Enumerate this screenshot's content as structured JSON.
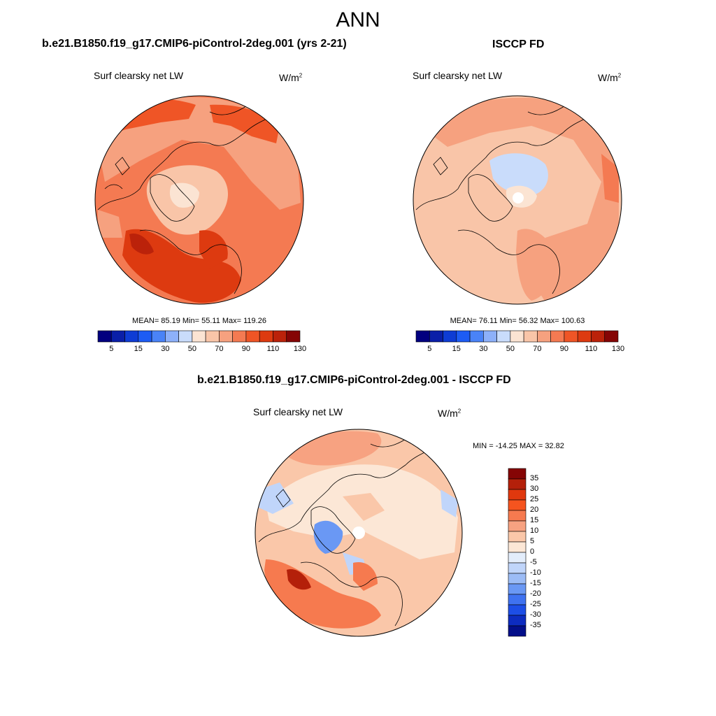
{
  "title": "ANN",
  "panels": [
    {
      "id": "model",
      "case_title": "b.e21.B1850.f19_g17.CMIP6-piControl-2deg.001 (yrs 2-21)",
      "variable": "Surf clearsky net LW",
      "units_base": "W/m",
      "units_sup": "2",
      "stats": "MEAN=  85.19  Min=  55.11  Max= 119.26",
      "colorbar_ticks": [
        "5",
        "15",
        "30",
        "50",
        "70",
        "90",
        "110",
        "130"
      ]
    },
    {
      "id": "obs",
      "case_title": "ISCCP FD",
      "variable": "Surf clearsky net LW",
      "units_base": "W/m",
      "units_sup": "2",
      "stats": "MEAN=  76.11  Min=  56.32  Max= 100.63",
      "colorbar_ticks": [
        "5",
        "15",
        "30",
        "50",
        "70",
        "90",
        "110",
        "130"
      ]
    },
    {
      "id": "diff",
      "case_title": "b.e21.B1850.f19_g17.CMIP6-piControl-2deg.001 - ISCCP FD",
      "variable": "Surf clearsky net LW",
      "units_base": "W/m",
      "units_sup": "2",
      "stats": "MIN = -14.25 MAX =  32.82",
      "colorbar_ticks": [
        "35",
        "30",
        "25",
        "20",
        "15",
        "10",
        "5",
        "0",
        "-5",
        "-10",
        "-15",
        "-20",
        "-25",
        "-30",
        "-35"
      ]
    }
  ],
  "colors": {
    "abs_scale": [
      "#02007f",
      "#0a1fa8",
      "#0e3cd4",
      "#1d5cf4",
      "#4a83f7",
      "#8db0f9",
      "#c9dcfb",
      "#fbe4d3",
      "#f9c5a8",
      "#f6a17f",
      "#f47a52",
      "#ef5526",
      "#dd3a10",
      "#bb220a",
      "#850505"
    ],
    "diff_scale": [
      "#850505",
      "#b4200a",
      "#e0380e",
      "#f5541f",
      "#f67a4f",
      "#f7a281",
      "#fac7a9",
      "#fce7d6",
      "#e3edfb",
      "#c0d5fa",
      "#9cbcf6",
      "#6a98f4",
      "#3f72f0",
      "#1d4ee6",
      "#0d2cc0",
      "#030f8a"
    ],
    "land_outline": "#000000"
  }
}
